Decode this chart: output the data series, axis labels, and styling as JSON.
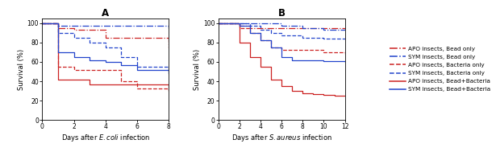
{
  "panel_A": {
    "title": "A",
    "xlabel": "Days after $\\it{E. coli}$ infection",
    "ylabel": "Survival (%)",
    "xlim": [
      0,
      8
    ],
    "ylim": [
      0,
      105
    ],
    "xticks": [
      0,
      2,
      4,
      6,
      8
    ],
    "yticks": [
      0,
      20,
      40,
      60,
      80,
      100
    ],
    "curves": [
      {
        "label": "APO insects, Bead only",
        "color": "#cc2222",
        "linestyle": "dashdot",
        "x": [
          0,
          1,
          2,
          4,
          8
        ],
        "y": [
          100,
          95,
          93,
          85,
          75
        ]
      },
      {
        "label": "SYM insects, Bead only",
        "color": "#2244cc",
        "linestyle": "dashdot",
        "x": [
          0,
          1,
          8
        ],
        "y": [
          100,
          97,
          95
        ]
      },
      {
        "label": "APO insects, Bacteria only",
        "color": "#cc2222",
        "linestyle": "dashed",
        "x": [
          0,
          1,
          2,
          4,
          5,
          6,
          8
        ],
        "y": [
          100,
          55,
          52,
          52,
          40,
          33,
          30
        ]
      },
      {
        "label": "SYM insects, Bacteria only",
        "color": "#2244cc",
        "linestyle": "dashed",
        "x": [
          0,
          1,
          2,
          3,
          4,
          5,
          6,
          8
        ],
        "y": [
          100,
          90,
          85,
          80,
          75,
          65,
          55,
          50
        ]
      },
      {
        "label": "APO insects, Bead+Bacteria",
        "color": "#cc2222",
        "linestyle": "solid",
        "x": [
          0,
          1,
          2,
          3,
          4,
          5,
          6,
          8
        ],
        "y": [
          100,
          42,
          42,
          37,
          37,
          37,
          37,
          32
        ]
      },
      {
        "label": "SYM insects, Bead+Bacteria",
        "color": "#2244cc",
        "linestyle": "solid",
        "x": [
          0,
          1,
          2,
          3,
          4,
          5,
          6,
          8
        ],
        "y": [
          100,
          70,
          65,
          62,
          60,
          57,
          52,
          48
        ]
      }
    ]
  },
  "panel_B": {
    "title": "B",
    "xlabel": "Days after $\\it{S. aureus}$ infection",
    "ylabel": "Survival (%)",
    "xlim": [
      0,
      12
    ],
    "ylim": [
      0,
      105
    ],
    "xticks": [
      0,
      2,
      4,
      6,
      8,
      10,
      12
    ],
    "yticks": [
      0,
      20,
      40,
      60,
      80,
      100
    ],
    "curves": [
      {
        "label": "APO insects, Bead only",
        "color": "#cc2222",
        "linestyle": "dashdot",
        "x": [
          0,
          2,
          3,
          4,
          6,
          8,
          12
        ],
        "y": [
          100,
          97,
          95,
          95,
          95,
          95,
          93
        ]
      },
      {
        "label": "SYM insects, Bead only",
        "color": "#2244cc",
        "linestyle": "dashdot",
        "x": [
          0,
          2,
          4,
          6,
          8,
          10,
          12
        ],
        "y": [
          100,
          100,
          100,
          97,
          95,
          93,
          93
        ]
      },
      {
        "label": "APO insects, Bacteria only",
        "color": "#cc2222",
        "linestyle": "dashed",
        "x": [
          0,
          2,
          3,
          4,
          5,
          6,
          8,
          10,
          12
        ],
        "y": [
          100,
          95,
          90,
          82,
          75,
          72,
          72,
          70,
          68
        ]
      },
      {
        "label": "SYM insects, Bacteria only",
        "color": "#2244cc",
        "linestyle": "dashed",
        "x": [
          0,
          2,
          3,
          4,
          5,
          6,
          8,
          10,
          12
        ],
        "y": [
          100,
          100,
          97,
          93,
          90,
          87,
          85,
          84,
          83
        ]
      },
      {
        "label": "APO insects, Bead+Bacteria",
        "color": "#cc2222",
        "linestyle": "solid",
        "x": [
          0,
          2,
          3,
          4,
          5,
          6,
          7,
          8,
          9,
          10,
          11,
          12
        ],
        "y": [
          100,
          80,
          65,
          55,
          42,
          35,
          30,
          28,
          27,
          26,
          25,
          25
        ]
      },
      {
        "label": "SYM insects, Bead+Bacteria",
        "color": "#2244cc",
        "linestyle": "solid",
        "x": [
          0,
          2,
          3,
          4,
          5,
          6,
          7,
          8,
          10,
          12
        ],
        "y": [
          100,
          97,
          90,
          82,
          75,
          65,
          62,
          62,
          61,
          60
        ]
      }
    ]
  },
  "legend_entries": [
    {
      "label": "APO insects, Bead only",
      "color": "#cc2222",
      "linestyle": "dashdot"
    },
    {
      "label": "SYM insects, Bead only",
      "color": "#2244cc",
      "linestyle": "dashdot"
    },
    {
      "label": "APO insects, Bacteria only",
      "color": "#cc2222",
      "linestyle": "dashed"
    },
    {
      "label": "SYM insects, Bacteria only",
      "color": "#2244cc",
      "linestyle": "dashed"
    },
    {
      "label": "APO insects, Bead+Bacteria",
      "color": "#cc2222",
      "linestyle": "solid"
    },
    {
      "label": "SYM insects, Bead+Bacteria",
      "color": "#2244cc",
      "linestyle": "solid"
    }
  ],
  "fig_width": 6.15,
  "fig_height": 1.89,
  "dpi": 100
}
